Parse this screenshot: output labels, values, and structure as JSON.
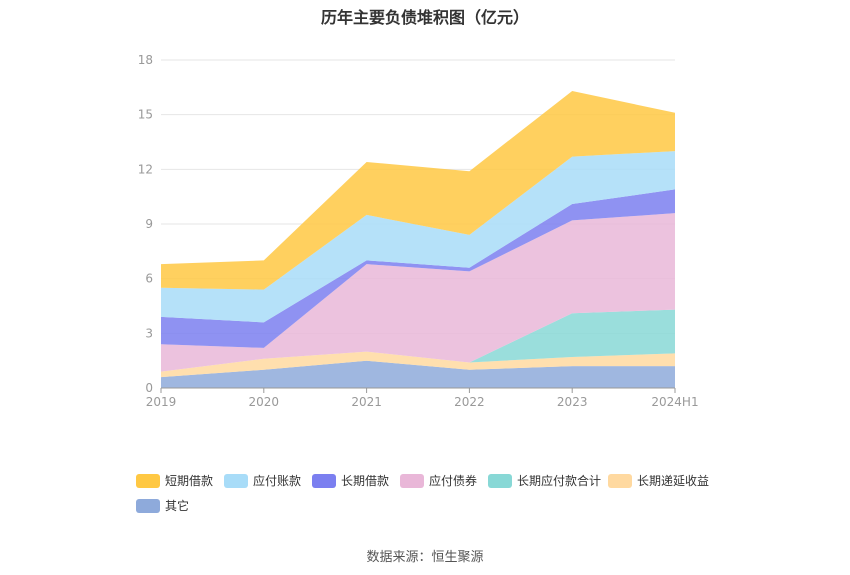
{
  "chart_data": {
    "type": "area",
    "stacked": true,
    "title": "历年主要负债堆积图（亿元）",
    "categories": [
      "2019",
      "2020",
      "2021",
      "2022",
      "2023",
      "2024H1"
    ],
    "ylim": [
      0,
      18
    ],
    "yticks": [
      "0",
      "3",
      "6",
      "9",
      "12",
      "15",
      "18"
    ],
    "grid": true,
    "legend_position": "bottom",
    "series": [
      {
        "name": "其它",
        "color": "#8eaadb",
        "values": [
          0.6,
          1.0,
          1.5,
          1.0,
          1.2,
          1.2
        ]
      },
      {
        "name": "长期递延收益",
        "color": "#ffd9a0",
        "values": [
          0.3,
          0.6,
          0.5,
          0.4,
          0.5,
          0.7
        ]
      },
      {
        "name": "长期应付款合计",
        "color": "#88d8d6",
        "values": [
          0.0,
          0.0,
          0.0,
          0.0,
          2.4,
          2.4
        ]
      },
      {
        "name": "应付债券",
        "color": "#e9b7d8",
        "values": [
          1.5,
          0.6,
          4.8,
          5.0,
          5.1,
          5.3
        ]
      },
      {
        "name": "长期借款",
        "color": "#7b7ff0",
        "values": [
          1.5,
          1.4,
          0.2,
          0.2,
          0.9,
          1.3
        ]
      },
      {
        "name": "应付账款",
        "color": "#a8dcf8",
        "values": [
          1.6,
          1.8,
          2.5,
          1.8,
          2.6,
          2.1
        ]
      },
      {
        "name": "短期借款",
        "color": "#ffc843",
        "values": [
          1.3,
          1.6,
          2.9,
          3.5,
          3.6,
          2.1
        ]
      }
    ]
  },
  "legend_order": [
    "短期借款",
    "应付账款",
    "长期借款",
    "应付债券",
    "长期应付款合计",
    "长期递延收益",
    "其它"
  ],
  "source": "数据来源：恒生聚源"
}
